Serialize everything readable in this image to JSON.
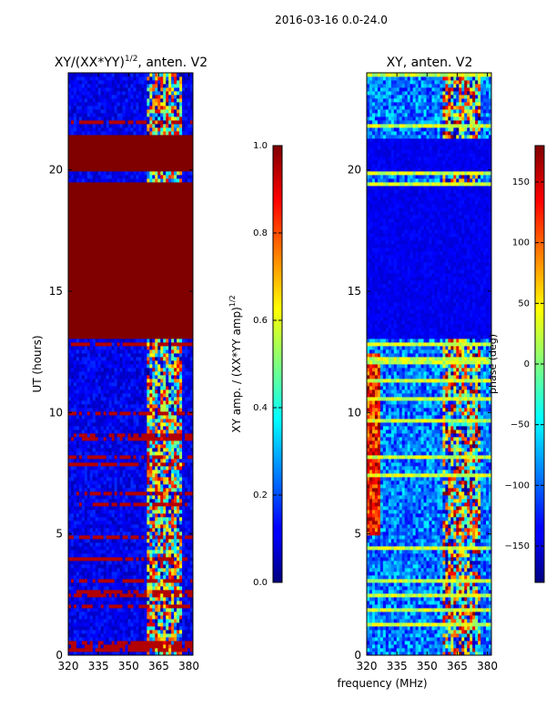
{
  "suptitle": "2016-03-16 0.0-24.0",
  "shared_xlabel": "frequency (MHz)",
  "chart_data": [
    {
      "type": "heatmap",
      "id": "amp",
      "title": "XY/(XX*YY)",
      "title_sup": "1/2",
      "title_suffix": ", anten. V2",
      "ylabel": "UT (hours)",
      "xlim": [
        320,
        382
      ],
      "ylim": [
        0,
        24
      ],
      "xticks": [
        320,
        335,
        350,
        365,
        380
      ],
      "xtick_labels": [
        "320",
        "335",
        "350",
        "365",
        "380"
      ],
      "yticks": [
        0,
        5,
        10,
        15,
        20
      ],
      "ytick_labels": [
        "0",
        "5",
        "10",
        "15",
        "20"
      ],
      "saturated_bands_hours": [
        [
          13.0,
          19.5
        ],
        [
          19.9,
          21.4
        ]
      ],
      "active_band_mhz": [
        359,
        377
      ],
      "colorbar": {
        "label_main": "XY amp. / (XX*YY amp)",
        "label_sup": "1/2",
        "range": [
          0.0,
          1.0
        ],
        "ticks": [
          0.0,
          0.2,
          0.4,
          0.6,
          0.8,
          1.0
        ],
        "tick_labels": [
          "0.0",
          "0.2",
          "0.4",
          "0.6",
          "0.8",
          "1.0"
        ]
      }
    },
    {
      "type": "heatmap",
      "id": "phase",
      "title": "XY, anten. V2",
      "xlim": [
        320,
        382
      ],
      "ylim": [
        0,
        24
      ],
      "xticks": [
        320,
        335,
        350,
        365,
        380
      ],
      "xtick_labels": [
        "320",
        "335",
        "350",
        "365",
        "380"
      ],
      "yticks": [
        0,
        5,
        10,
        15,
        20
      ],
      "ytick_labels": [
        "0",
        "5",
        "10",
        "15",
        "20"
      ],
      "quiet_bands_hours": [
        [
          13.0,
          19.3
        ],
        [
          19.9,
          21.3
        ]
      ],
      "active_band_mhz": [
        358,
        377
      ],
      "colorbar": {
        "label": "phase (deg)",
        "range": [
          -180,
          180
        ],
        "ticks": [
          -150,
          -100,
          -50,
          0,
          50,
          100,
          150
        ],
        "tick_labels": [
          "−150",
          "−100",
          "−50",
          "0",
          "50",
          "100",
          "150"
        ]
      }
    }
  ]
}
